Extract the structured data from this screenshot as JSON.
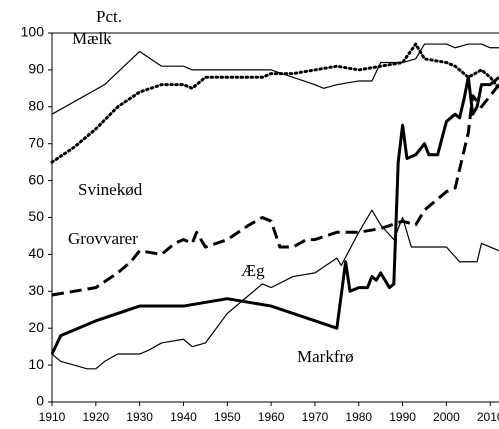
{
  "chart_data": {
    "type": "line",
    "y_label": "Pct.",
    "xlim": [
      1910,
      2012
    ],
    "xticks": [
      1910,
      1920,
      1930,
      1940,
      1950,
      1960,
      1970,
      1980,
      1990,
      2000,
      2010
    ],
    "ylim": [
      0,
      100
    ],
    "yticks": [
      0,
      10,
      20,
      30,
      40,
      50,
      60,
      70,
      80,
      90,
      100
    ],
    "series": [
      {
        "name": "Mælk",
        "color": "#000000",
        "linestyle": "solid",
        "weight": "normal",
        "x": [
          1910,
          1922,
          1930,
          1935,
          1940,
          1942,
          1950,
          1960,
          1965,
          1970,
          1972,
          1975,
          1980,
          1983,
          1985,
          1990,
          1993,
          1995,
          2000,
          2002,
          2005,
          2008,
          2010,
          2012
        ],
        "values": [
          78,
          86,
          95,
          91,
          91,
          90,
          90,
          90,
          88,
          86,
          85,
          86,
          87,
          87,
          92,
          92,
          93,
          97,
          97,
          96,
          97,
          97,
          96,
          96
        ]
      },
      {
        "name": "Svinekød",
        "color": "#000000",
        "linestyle": "dotted",
        "weight": "bold",
        "x": [
          1910,
          1915,
          1920,
          1925,
          1930,
          1935,
          1940,
          1942,
          1945,
          1950,
          1958,
          1960,
          1965,
          1970,
          1975,
          1980,
          1985,
          1990,
          1993,
          1995,
          2000,
          2002,
          2005,
          2008,
          2010,
          2012
        ],
        "values": [
          65,
          69,
          74,
          80,
          84,
          86,
          86,
          85,
          88,
          88,
          88,
          89,
          89,
          90,
          91,
          90,
          91,
          92,
          97,
          93,
          92,
          91,
          88,
          90,
          88,
          85
        ]
      },
      {
        "name": "Grovvarer",
        "color": "#000000",
        "linestyle": "dashed",
        "weight": "bold",
        "x": [
          1910,
          1915,
          1920,
          1925,
          1928,
          1930,
          1935,
          1938,
          1940,
          1942,
          1943,
          1945,
          1950,
          1955,
          1958,
          1960,
          1962,
          1965,
          1968,
          1970,
          1975,
          1980,
          1985,
          1990,
          1993,
          1995,
          2000,
          2002,
          2005,
          2006,
          2008,
          2010,
          2012
        ],
        "values": [
          29,
          30,
          31,
          35,
          38,
          41,
          40,
          43,
          44,
          43,
          46,
          42,
          44,
          48,
          50,
          49,
          42,
          42,
          44,
          44,
          46,
          46,
          47,
          49,
          48,
          52,
          57,
          58,
          73,
          83,
          80,
          83,
          86
        ]
      },
      {
        "name": "Æg",
        "color": "#000000",
        "linestyle": "solid",
        "weight": "normal",
        "x": [
          1910,
          1912,
          1915,
          1918,
          1920,
          1922,
          1925,
          1930,
          1932,
          1935,
          1940,
          1942,
          1945,
          1950,
          1955,
          1958,
          1960,
          1965,
          1970,
          1975,
          1976,
          1980,
          1983,
          1985,
          1988,
          1990,
          1992,
          1995,
          2000,
          2003,
          2005,
          2007,
          2008,
          2010,
          2012
        ],
        "values": [
          13,
          11,
          10,
          9,
          9,
          11,
          13,
          13,
          14,
          16,
          17,
          15,
          16,
          24,
          29,
          32,
          31,
          34,
          35,
          39,
          37,
          46,
          52,
          48,
          44,
          50,
          42,
          42,
          42,
          38,
          38,
          38,
          43,
          42,
          41
        ]
      },
      {
        "name": "Markfrø",
        "color": "#000000",
        "linestyle": "solid",
        "weight": "bold",
        "x": [
          1910,
          1912,
          1920,
          1930,
          1940,
          1950,
          1960,
          1970,
          1975,
          1977,
          1978,
          1980,
          1982,
          1983,
          1984,
          1985,
          1987,
          1988,
          1989,
          1990,
          1991,
          1993,
          1995,
          1996,
          1998,
          2000,
          2002,
          2003,
          2004,
          2005,
          2006,
          2007,
          2008,
          2010,
          2012
        ],
        "values": [
          13,
          18,
          22,
          26,
          26,
          28,
          26,
          22,
          20,
          38,
          30,
          31,
          31,
          34,
          33,
          35,
          31,
          32,
          65,
          75,
          66,
          67,
          70,
          67,
          67,
          76,
          78,
          77,
          82,
          88,
          78,
          80,
          86,
          86,
          88
        ]
      }
    ]
  }
}
